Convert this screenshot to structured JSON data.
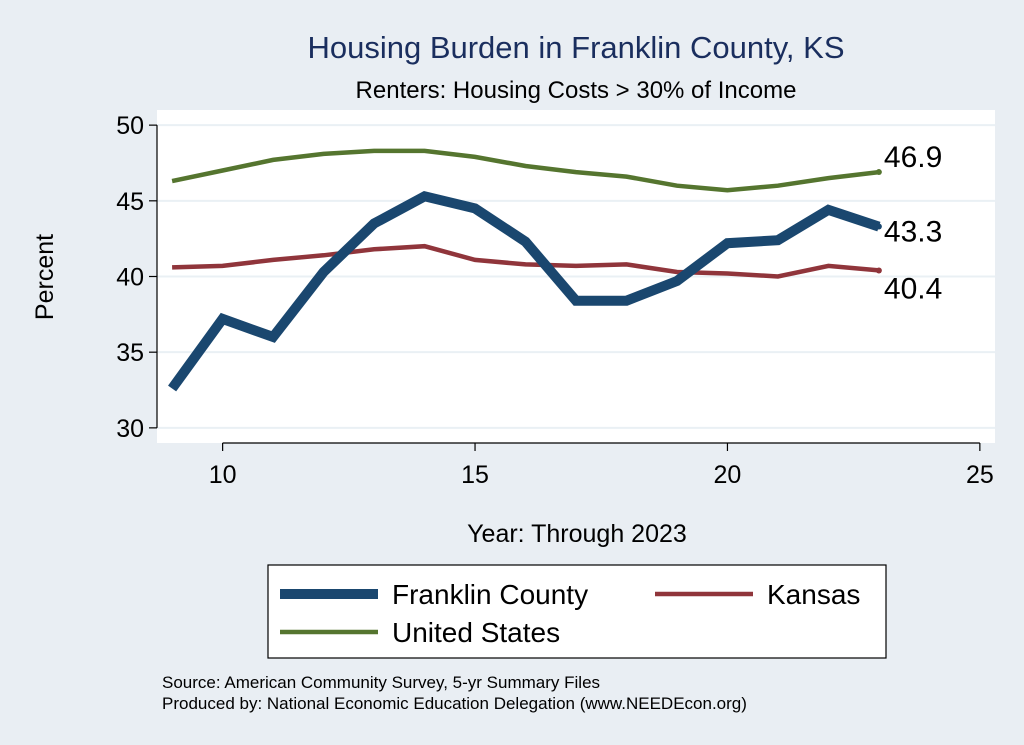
{
  "chart_data": {
    "type": "line",
    "title": "Housing Burden in Franklin County, KS",
    "subtitle": "Renters: Housing Costs > 30% of Income",
    "xlabel": "Year: Through 2023",
    "ylabel": "Percent",
    "xlim": [
      8.7,
      25.3
    ],
    "ylim": [
      29,
      51
    ],
    "xticks": [
      10,
      15,
      20,
      25
    ],
    "yticks": [
      30,
      35,
      40,
      45,
      50
    ],
    "grid": true,
    "legend_position": "bottom",
    "series": [
      {
        "name": "Franklin County",
        "color": "#1a476f",
        "x": [
          9,
          10,
          11,
          12,
          13,
          14,
          15,
          16,
          17,
          18,
          19,
          20,
          21,
          22,
          23
        ],
        "y": [
          32.6,
          37.2,
          36.0,
          40.3,
          43.5,
          45.3,
          44.5,
          42.3,
          38.4,
          38.4,
          39.7,
          42.2,
          42.4,
          44.4,
          43.3
        ],
        "end_label": "43.3"
      },
      {
        "name": "Kansas",
        "color": "#90353b",
        "x": [
          9,
          10,
          11,
          12,
          13,
          14,
          15,
          16,
          17,
          18,
          19,
          20,
          21,
          22,
          23
        ],
        "y": [
          40.6,
          40.7,
          41.1,
          41.4,
          41.8,
          42.0,
          41.1,
          40.8,
          40.7,
          40.8,
          40.3,
          40.2,
          40.0,
          40.7,
          40.4
        ],
        "end_label": "40.4"
      },
      {
        "name": "United States",
        "color": "#55752f",
        "x": [
          9,
          10,
          11,
          12,
          13,
          14,
          15,
          16,
          17,
          18,
          19,
          20,
          21,
          22,
          23
        ],
        "y": [
          46.3,
          47.0,
          47.7,
          48.1,
          48.3,
          48.3,
          47.9,
          47.3,
          46.9,
          46.6,
          46.0,
          45.7,
          46.0,
          46.5,
          46.9
        ],
        "end_label": "46.9"
      }
    ],
    "notes": [
      "Source: American Community Survey, 5-yr Summary Files",
      "Produced by: National Economic Education Delegation (www.NEEDEcon.org)"
    ]
  },
  "colors": {
    "background": "#e9eef3",
    "plot_background": "#ffffff",
    "title": "#1a2e5e",
    "grid": "#eaf0f4"
  }
}
